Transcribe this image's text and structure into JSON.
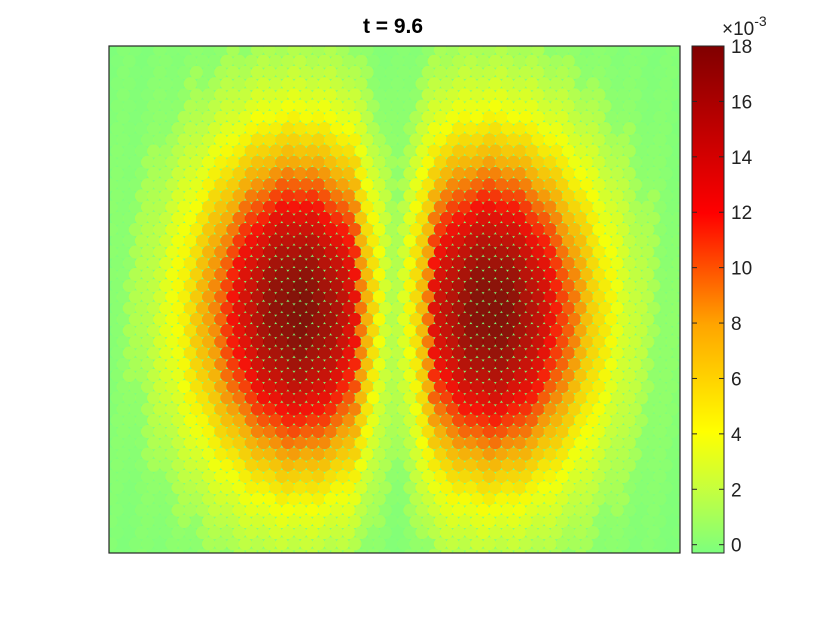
{
  "chart_data": {
    "type": "heatmap",
    "title": "t = 9.6",
    "xlabel": "",
    "ylabel": "",
    "axes_ticks_visible": false,
    "colormap": "green-yellow-red-darkred",
    "colormap_stops": [
      "#7dff7d",
      "#c8ff3c",
      "#ffff00",
      "#ffa500",
      "#ff0000",
      "#800000"
    ],
    "colorbar": {
      "ticks": [
        0,
        2,
        4,
        6,
        8,
        10,
        12,
        14,
        16,
        18
      ],
      "tick_labels": [
        "0",
        "2",
        "4",
        "6",
        "8",
        "10",
        "12",
        "14",
        "16",
        "18"
      ],
      "range": [
        -0.3,
        18
      ],
      "exponent_label": "×10",
      "exponent_power": "-3"
    },
    "field": {
      "description_peaks": [
        {
          "x": 0.33,
          "y": 0.52,
          "value": 18
        },
        {
          "x": 0.67,
          "y": 0.52,
          "value": 18
        }
      ],
      "background_value": 0
    }
  }
}
